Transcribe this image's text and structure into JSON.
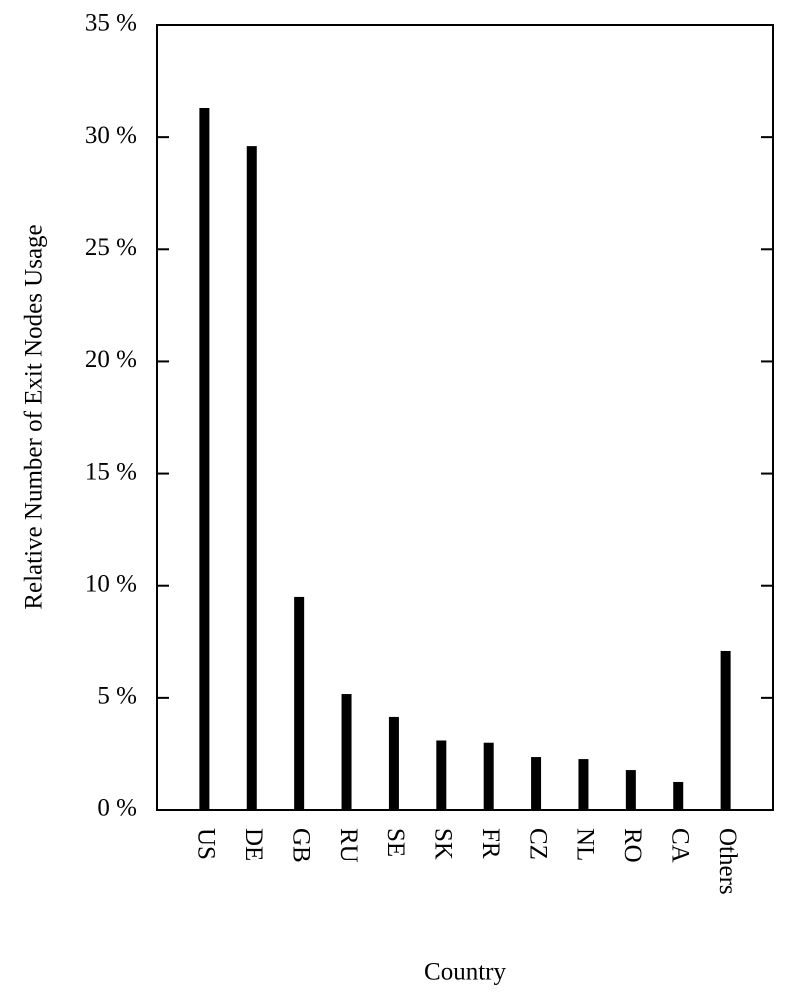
{
  "chart_data": {
    "type": "bar",
    "ylabel": "Relative Number of Exit Nodes Usage",
    "xlabel": "Country",
    "categories": [
      "US",
      "DE",
      "GB",
      "RU",
      "SE",
      "SK",
      "FR",
      "CZ",
      "NL",
      "RO",
      "CA",
      "Others"
    ],
    "values": [
      31.3,
      29.6,
      9.5,
      5.17,
      4.15,
      3.1,
      3.0,
      2.36,
      2.27,
      1.78,
      1.25,
      7.09
    ],
    "color": "#000000",
    "ylim": [
      0,
      35
    ],
    "yticks": [
      {
        "value": 0,
        "label": "0 %"
      },
      {
        "value": 5,
        "label": "5 %"
      },
      {
        "value": 10,
        "label": "10 %"
      },
      {
        "value": 15,
        "label": "15 %"
      },
      {
        "value": 20,
        "label": "20 %"
      },
      {
        "value": 25,
        "label": "25 %"
      },
      {
        "value": 30,
        "label": "30 %"
      },
      {
        "value": 35,
        "label": "35 %"
      }
    ],
    "grid": false
  }
}
